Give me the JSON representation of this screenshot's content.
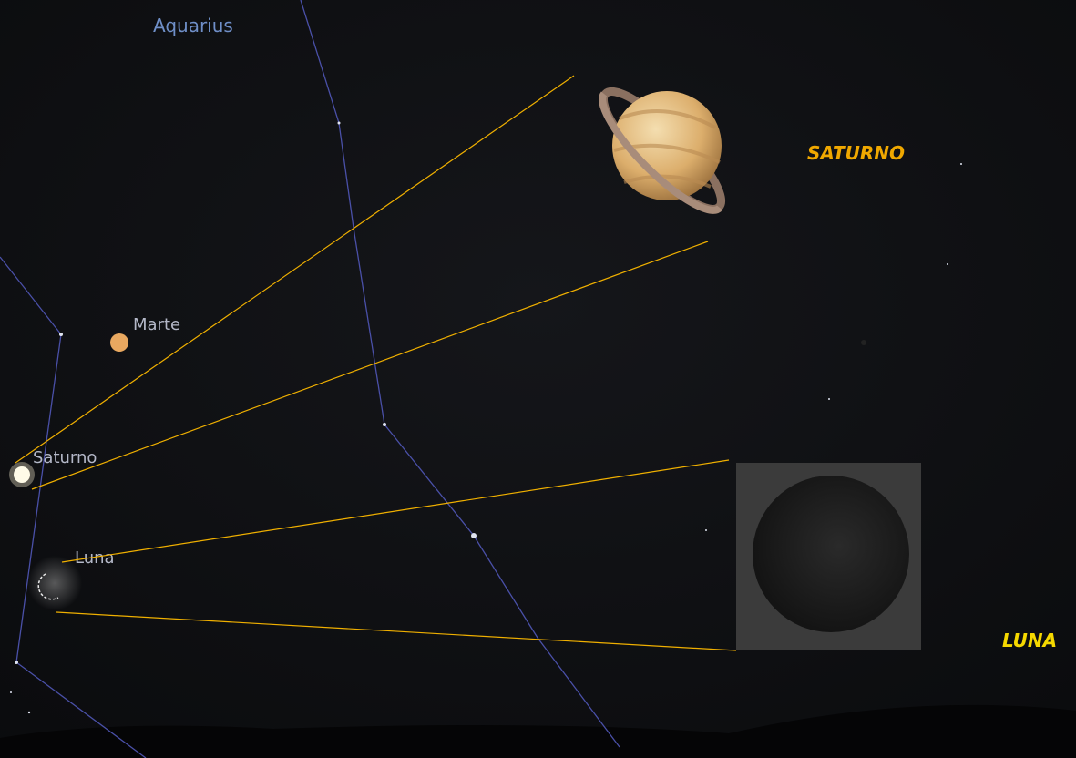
{
  "sky_labels": {
    "constellation": "Aquarius",
    "planets": [
      "Marte",
      "Saturno",
      "Luna"
    ]
  },
  "callouts": {
    "saturn": "SATURNO",
    "moon": "LUNA"
  }
}
